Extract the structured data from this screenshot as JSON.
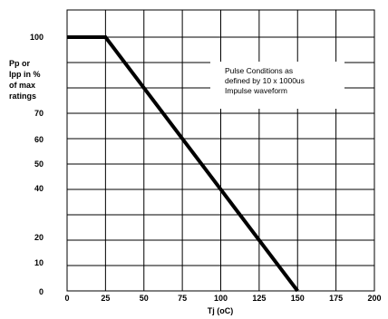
{
  "chart_data": {
    "type": "line",
    "title": "",
    "xlabel": "Tj (oC)",
    "ylabel_lines": [
      "Pp or",
      "Ipp in %",
      "of max",
      "ratings"
    ],
    "xlim": [
      0,
      200
    ],
    "ylim": [
      0,
      105
    ],
    "x_ticks": [
      0,
      25,
      50,
      75,
      100,
      125,
      150,
      175,
      200
    ],
    "y_ticks": [
      0,
      10,
      20,
      30,
      40,
      50,
      60,
      70,
      100
    ],
    "y_tick_labels": [
      "0",
      "10",
      "20",
      "",
      "40",
      "50",
      "60",
      "70",
      "100"
    ],
    "grid": true,
    "series": [
      {
        "x": [
          0,
          25,
          150
        ],
        "y": [
          100,
          100,
          0
        ]
      }
    ],
    "annotation_lines": [
      "Pulse Conditions as",
      "defined by 10 x 1000us",
      "Impulse waveform"
    ],
    "colors": {
      "line": "#000000",
      "grid": "#000000",
      "annotation_box": "#ffffff"
    }
  }
}
